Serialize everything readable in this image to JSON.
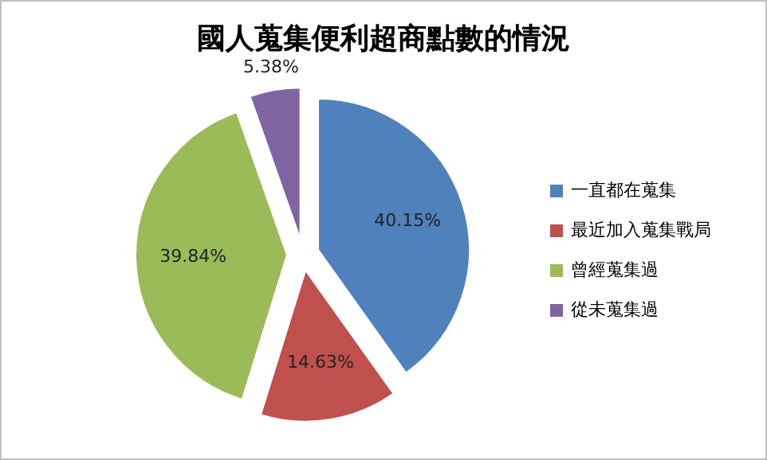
{
  "chart_data": {
    "type": "pie",
    "title": "國人蒐集便利超商點數的情況",
    "categories": [
      "一直都在蒐集",
      "最近加入蒐集戰局",
      "曾經蒐集過",
      "從未蒐集過"
    ],
    "values": [
      40.15,
      14.63,
      39.84,
      5.38
    ],
    "colors": [
      "#4f81bd",
      "#c0504d",
      "#9bbb59",
      "#8064a2"
    ],
    "value_labels": [
      "40.15%",
      "14.63%",
      "39.84%",
      "5.38%"
    ],
    "legend": "right"
  }
}
